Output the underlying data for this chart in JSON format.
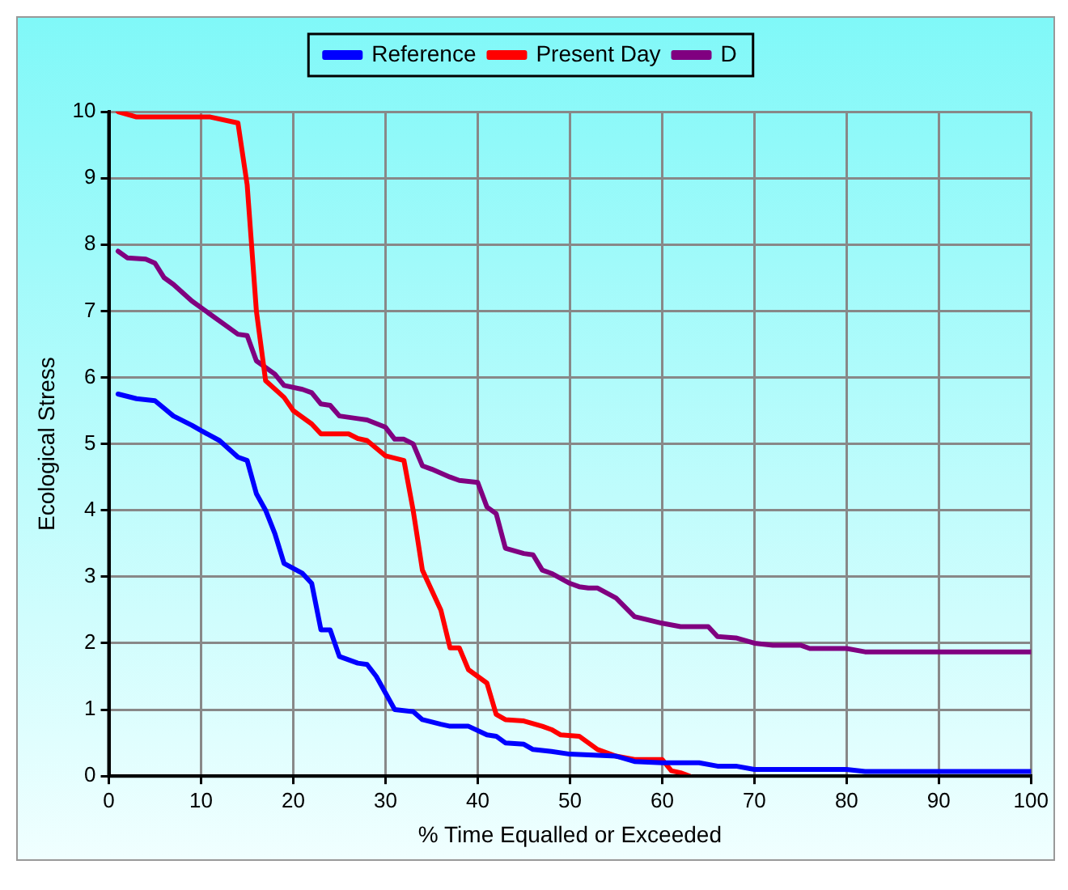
{
  "chart_data": {
    "type": "line",
    "xlabel": "% Time Equalled or Exceeded",
    "ylabel": "Ecological Stress",
    "xlim": [
      0,
      100
    ],
    "xticks": [
      0,
      10,
      20,
      30,
      40,
      50,
      60,
      70,
      80,
      90,
      100
    ],
    "ylim": [
      0,
      10
    ],
    "yticks": [
      0,
      1,
      2,
      3,
      4,
      5,
      6,
      7,
      8,
      9,
      10
    ],
    "grid": true,
    "legend": "top",
    "marker": "none",
    "line_style": "solid",
    "series": [
      {
        "name": "Reference",
        "color": "#0000ff",
        "x": [
          1,
          3,
          5,
          7,
          9,
          10,
          12,
          14,
          15,
          16,
          17,
          18,
          19,
          21,
          22,
          23,
          24,
          25,
          27,
          28,
          29,
          30,
          31,
          33,
          34,
          36,
          37,
          39,
          41,
          42,
          43,
          45,
          46,
          48,
          50,
          55,
          57,
          60,
          64,
          66,
          68,
          70,
          75,
          80,
          82,
          100
        ],
        "values": [
          5.75,
          5.68,
          5.65,
          5.42,
          5.28,
          5.2,
          5.05,
          4.8,
          4.75,
          4.25,
          4.0,
          3.65,
          3.2,
          3.05,
          2.9,
          2.2,
          2.2,
          1.8,
          1.7,
          1.68,
          1.5,
          1.25,
          1.0,
          0.97,
          0.85,
          0.78,
          0.75,
          0.75,
          0.62,
          0.6,
          0.5,
          0.48,
          0.4,
          0.37,
          0.33,
          0.3,
          0.22,
          0.2,
          0.2,
          0.15,
          0.15,
          0.1,
          0.1,
          0.1,
          0.07,
          0.07
        ]
      },
      {
        "name": "Present Day",
        "color": "#ff0000",
        "x": [
          1,
          3,
          10,
          11,
          14,
          15,
          16,
          17,
          19,
          20,
          22,
          23,
          26,
          27,
          28,
          30,
          32,
          33,
          34,
          36,
          37,
          38,
          39,
          40,
          41,
          42,
          43,
          45,
          47,
          48,
          49,
          51,
          52,
          53,
          55,
          57,
          60,
          61,
          62,
          63
        ],
        "values": [
          10,
          9.92,
          9.92,
          9.92,
          9.83,
          8.9,
          7,
          5.95,
          5.7,
          5.5,
          5.3,
          5.15,
          5.15,
          5.08,
          5.05,
          4.82,
          4.75,
          4.0,
          3.1,
          2.5,
          1.93,
          1.93,
          1.6,
          1.5,
          1.4,
          0.93,
          0.85,
          0.83,
          0.75,
          0.7,
          0.62,
          0.6,
          0.5,
          0.4,
          0.3,
          0.25,
          0.25,
          0.08,
          0.05,
          0
        ]
      },
      {
        "name": "D",
        "color": "#800080",
        "x": [
          1,
          2,
          4,
          5,
          6,
          7,
          9,
          11,
          13,
          14,
          15,
          16,
          18,
          19,
          21,
          22,
          23,
          24,
          25,
          27,
          28,
          30,
          31,
          32,
          33,
          34,
          35,
          37,
          38,
          40,
          41,
          42,
          43,
          45,
          46,
          47,
          48,
          50,
          51,
          52,
          53,
          55,
          57,
          60,
          62,
          65,
          66,
          68,
          70,
          72,
          75,
          76,
          80,
          82,
          100
        ],
        "values": [
          7.9,
          7.8,
          7.78,
          7.72,
          7.5,
          7.4,
          7.15,
          6.95,
          6.75,
          6.65,
          6.63,
          6.25,
          6.05,
          5.88,
          5.82,
          5.77,
          5.6,
          5.58,
          5.42,
          5.38,
          5.36,
          5.25,
          5.07,
          5.07,
          5.0,
          4.67,
          4.62,
          4.5,
          4.45,
          4.42,
          4.05,
          3.95,
          3.43,
          3.35,
          3.33,
          3.1,
          3.05,
          2.9,
          2.85,
          2.83,
          2.83,
          2.68,
          2.4,
          2.3,
          2.25,
          2.25,
          2.1,
          2.08,
          2.0,
          1.97,
          1.97,
          1.92,
          1.92,
          1.87,
          1.87
        ]
      }
    ]
  }
}
